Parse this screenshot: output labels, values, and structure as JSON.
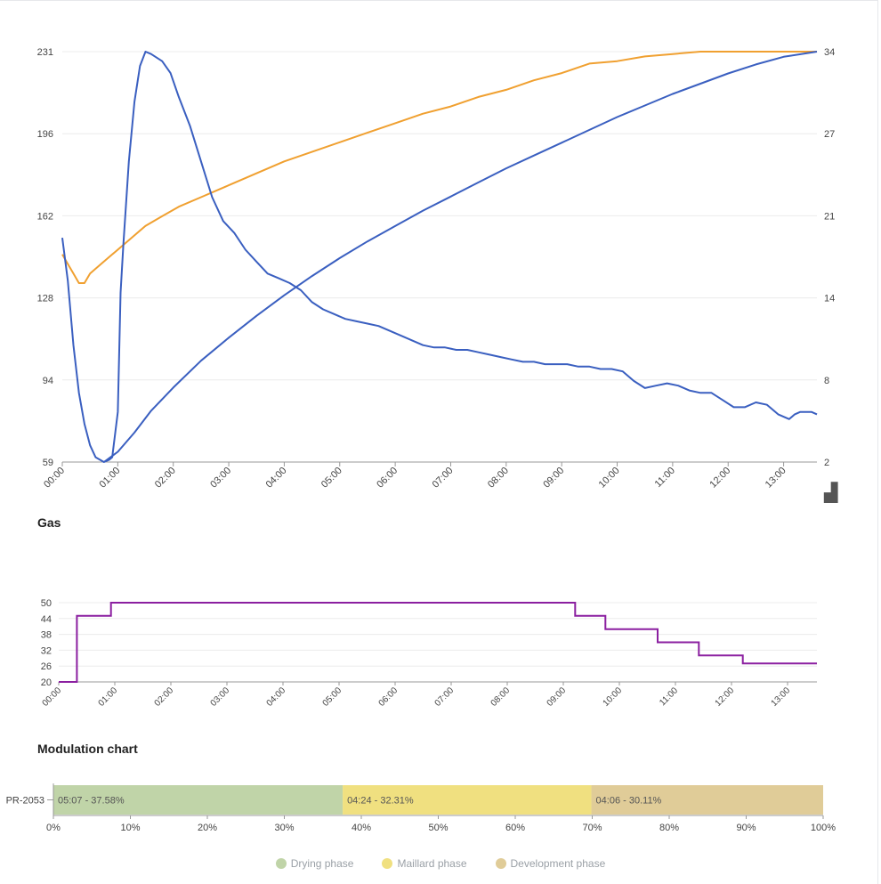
{
  "roast_chart": {
    "chart_data": {
      "type": "line",
      "x_ticks": [
        "00:00",
        "01:00",
        "02:00",
        "03:00",
        "04:00",
        "05:00",
        "06:00",
        "07:00",
        "08:00",
        "09:00",
        "10:00",
        "11:00",
        "12:00",
        "13:00"
      ],
      "y_left_ticks": [
        "59",
        "94",
        "128",
        "162",
        "196",
        "231"
      ],
      "y_right_ticks": [
        "2",
        "8",
        "14",
        "21",
        "27",
        "34"
      ],
      "ylim_left": [
        59,
        231
      ],
      "ylim_right": [
        2,
        34
      ],
      "xlim_minutes": [
        0,
        13.6
      ],
      "grid": true,
      "series": [
        {
          "axis": "left",
          "color": "#f0a030",
          "points": [
            [
              0,
              146
            ],
            [
              0.1,
              142
            ],
            [
              0.2,
              138
            ],
            [
              0.3,
              134
            ],
            [
              0.4,
              134
            ],
            [
              0.5,
              138
            ],
            [
              0.7,
              142
            ],
            [
              0.9,
              146
            ],
            [
              1.1,
              150
            ],
            [
              1.3,
              154
            ],
            [
              1.5,
              158
            ],
            [
              1.8,
              162
            ],
            [
              2.1,
              166
            ],
            [
              2.5,
              170
            ],
            [
              3.0,
              175
            ],
            [
              3.5,
              180
            ],
            [
              4.0,
              185
            ],
            [
              4.5,
              189
            ],
            [
              5.0,
              193
            ],
            [
              5.5,
              197
            ],
            [
              6.0,
              201
            ],
            [
              6.5,
              205
            ],
            [
              7.0,
              208
            ],
            [
              7.5,
              212
            ],
            [
              8.0,
              215
            ],
            [
              8.5,
              219
            ],
            [
              9.0,
              222
            ],
            [
              9.5,
              226
            ],
            [
              10.0,
              227
            ],
            [
              10.5,
              229
            ],
            [
              11.0,
              230
            ],
            [
              11.5,
              231
            ],
            [
              12.0,
              231
            ],
            [
              12.5,
              231
            ],
            [
              13.0,
              231
            ],
            [
              13.6,
              231
            ]
          ]
        },
        {
          "axis": "left",
          "color": "#3a5fc0",
          "points": [
            [
              0,
              153
            ],
            [
              0.1,
              135
            ],
            [
              0.2,
              108
            ],
            [
              0.3,
              88
            ],
            [
              0.4,
              75
            ],
            [
              0.5,
              66
            ],
            [
              0.6,
              61
            ],
            [
              0.75,
              59
            ],
            [
              0.85,
              60
            ],
            [
              0.9,
              61
            ],
            [
              1.0,
              80
            ],
            [
              1.05,
              130
            ],
            [
              1.1,
              150
            ],
            [
              1.2,
              185
            ],
            [
              1.3,
              210
            ],
            [
              1.4,
              225
            ],
            [
              1.5,
              231
            ],
            [
              1.6,
              230
            ],
            [
              1.8,
              227
            ],
            [
              1.95,
              222
            ],
            [
              2.1,
              212
            ],
            [
              2.3,
              200
            ],
            [
              2.5,
              185
            ],
            [
              2.7,
              170
            ],
            [
              2.9,
              160
            ],
            [
              3.1,
              155
            ],
            [
              3.3,
              148
            ],
            [
              3.5,
              143
            ],
            [
              3.7,
              138
            ],
            [
              3.9,
              136
            ],
            [
              4.1,
              134
            ],
            [
              4.3,
              131
            ],
            [
              4.5,
              126
            ],
            [
              4.7,
              123
            ],
            [
              4.9,
              121
            ],
            [
              5.1,
              119
            ],
            [
              5.3,
              118
            ],
            [
              5.5,
              117
            ],
            [
              5.7,
              116
            ],
            [
              5.9,
              114
            ],
            [
              6.1,
              112
            ],
            [
              6.3,
              110
            ],
            [
              6.5,
              108
            ],
            [
              6.7,
              107
            ],
            [
              6.9,
              107
            ],
            [
              7.1,
              106
            ],
            [
              7.3,
              106
            ],
            [
              7.5,
              105
            ],
            [
              7.7,
              104
            ],
            [
              7.9,
              103
            ],
            [
              8.1,
              102
            ],
            [
              8.3,
              101
            ],
            [
              8.5,
              101
            ],
            [
              8.7,
              100
            ],
            [
              8.9,
              100
            ],
            [
              9.1,
              100
            ],
            [
              9.3,
              99
            ],
            [
              9.5,
              99
            ],
            [
              9.7,
              98
            ],
            [
              9.9,
              98
            ],
            [
              10.1,
              97
            ],
            [
              10.3,
              93
            ],
            [
              10.5,
              90
            ],
            [
              10.7,
              91
            ],
            [
              10.9,
              92
            ],
            [
              11.1,
              91
            ],
            [
              11.3,
              89
            ],
            [
              11.5,
              88
            ],
            [
              11.7,
              88
            ],
            [
              11.9,
              85
            ],
            [
              12.1,
              82
            ],
            [
              12.3,
              82
            ],
            [
              12.5,
              84
            ],
            [
              12.7,
              83
            ],
            [
              12.9,
              79
            ],
            [
              13.1,
              77
            ],
            [
              13.2,
              79
            ],
            [
              13.3,
              80
            ],
            [
              13.5,
              80
            ],
            [
              13.6,
              79
            ]
          ]
        },
        {
          "axis": "right",
          "color": "#3a5fc0",
          "points": [
            [
              0.75,
              2.0
            ],
            [
              1.0,
              2.8
            ],
            [
              1.3,
              4.3
            ],
            [
              1.6,
              6.0
            ],
            [
              2.0,
              7.8
            ],
            [
              2.5,
              9.9
            ],
            [
              3.0,
              11.7
            ],
            [
              3.5,
              13.4
            ],
            [
              4.0,
              15.0
            ],
            [
              4.5,
              16.5
            ],
            [
              5.0,
              17.9
            ],
            [
              5.5,
              19.2
            ],
            [
              6.0,
              20.4
            ],
            [
              6.5,
              21.6
            ],
            [
              7.0,
              22.7
            ],
            [
              7.5,
              23.8
            ],
            [
              8.0,
              24.9
            ],
            [
              8.5,
              25.9
            ],
            [
              9.0,
              26.9
            ],
            [
              9.5,
              27.9
            ],
            [
              10.0,
              28.9
            ],
            [
              10.5,
              29.8
            ],
            [
              11.0,
              30.7
            ],
            [
              11.5,
              31.5
            ],
            [
              12.0,
              32.3
            ],
            [
              12.5,
              33.0
            ],
            [
              13.0,
              33.6
            ],
            [
              13.6,
              34.0
            ]
          ]
        }
      ]
    },
    "brand_mark": "▟"
  },
  "gas_chart": {
    "title": "Gas",
    "chart_data": {
      "type": "line",
      "x_ticks": [
        "00:00",
        "01:00",
        "02:00",
        "03:00",
        "04:00",
        "05:00",
        "06:00",
        "07:00",
        "08:00",
        "09:00",
        "10:00",
        "11:00",
        "12:00",
        "13:00"
      ],
      "y_ticks": [
        "20",
        "26",
        "32",
        "38",
        "44",
        "50"
      ],
      "ylim": [
        20,
        50
      ],
      "xlim_minutes": [
        0,
        13.8
      ],
      "grid": true,
      "series": [
        {
          "color": "#8b1fa0",
          "step": true,
          "points": [
            [
              0,
              20
            ],
            [
              0.33,
              20
            ],
            [
              0.33,
              45
            ],
            [
              0.95,
              45
            ],
            [
              0.95,
              50
            ],
            [
              9.4,
              50
            ],
            [
              9.4,
              45
            ],
            [
              9.95,
              45
            ],
            [
              9.95,
              40
            ],
            [
              10.9,
              40
            ],
            [
              10.9,
              35
            ],
            [
              11.65,
              35
            ],
            [
              11.65,
              30
            ],
            [
              12.45,
              30
            ],
            [
              12.45,
              27
            ],
            [
              13.8,
              27
            ]
          ]
        }
      ]
    }
  },
  "modulation_chart": {
    "title": "Modulation chart",
    "chart_data": {
      "type": "bar",
      "orientation": "horizontal",
      "stacked": true,
      "categories": [
        "PR-2053"
      ],
      "x_ticks": [
        "0%",
        "10%",
        "20%",
        "30%",
        "40%",
        "50%",
        "60%",
        "70%",
        "80%",
        "90%",
        "100%"
      ],
      "xlim": [
        0,
        100
      ],
      "series": [
        {
          "name": "Drying phase",
          "values": [
            37.58
          ],
          "label": "05:07 - 37.58%",
          "color": "#c0d4a8"
        },
        {
          "name": "Maillard phase",
          "values": [
            32.31
          ],
          "label": "04:24 - 32.31%",
          "color": "#f0e080"
        },
        {
          "name": "Development phase",
          "values": [
            30.11
          ],
          "label": "04:06 - 30.11%",
          "color": "#e0cc98"
        }
      ],
      "legend": "bottom-center"
    }
  }
}
